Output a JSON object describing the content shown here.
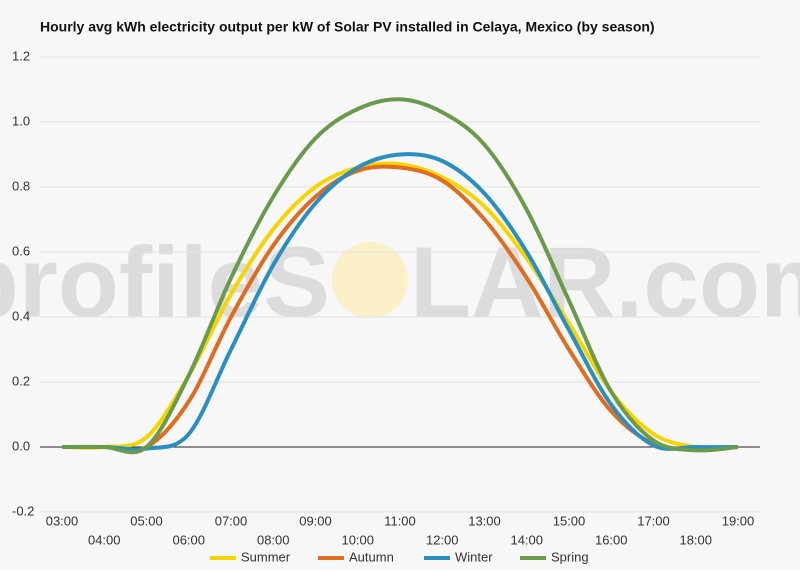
{
  "chart_data": {
    "type": "line",
    "title": "Hourly avg kWh electricity output per kW of Solar PV installed in Celaya, Mexico (by season)",
    "watermark": [
      "profileS",
      "LAR.com"
    ],
    "categories": [
      "03:00",
      "04:00",
      "05:00",
      "06:00",
      "07:00",
      "08:00",
      "09:00",
      "10:00",
      "11:00",
      "12:00",
      "13:00",
      "14:00",
      "15:00",
      "16:00",
      "17:00",
      "18:00",
      "19:00"
    ],
    "series": [
      {
        "name": "Summer",
        "color": "#f7d400",
        "values": [
          0,
          0,
          0.03,
          0.22,
          0.47,
          0.67,
          0.8,
          0.86,
          0.87,
          0.83,
          0.74,
          0.58,
          0.38,
          0.17,
          0.04,
          0,
          0
        ]
      },
      {
        "name": "Autumn",
        "color": "#e06c1f",
        "values": [
          0,
          0,
          0,
          0.14,
          0.4,
          0.62,
          0.77,
          0.85,
          0.86,
          0.82,
          0.7,
          0.52,
          0.3,
          0.11,
          0.01,
          -0.005,
          0
        ]
      },
      {
        "name": "Winter",
        "color": "#2a8fc0",
        "values": [
          0,
          0,
          -0.005,
          0.04,
          0.3,
          0.56,
          0.75,
          0.86,
          0.9,
          0.88,
          0.78,
          0.6,
          0.36,
          0.13,
          0.005,
          0,
          0
        ]
      },
      {
        "name": "Spring",
        "color": "#6a9a4c",
        "values": [
          0,
          0,
          0,
          0.22,
          0.52,
          0.77,
          0.95,
          1.04,
          1.07,
          1.03,
          0.93,
          0.73,
          0.45,
          0.17,
          0.02,
          -0.01,
          0
        ]
      }
    ],
    "ylim": [
      -0.2,
      1.2
    ],
    "yticks": [
      -0.2,
      {
        "value": 0,
        "label": "0.0"
      },
      0.2,
      0.4,
      0.6,
      0.8,
      {
        "value": 1,
        "label": "1.0"
      },
      1.2
    ],
    "grid": true,
    "legend": "bottom"
  }
}
